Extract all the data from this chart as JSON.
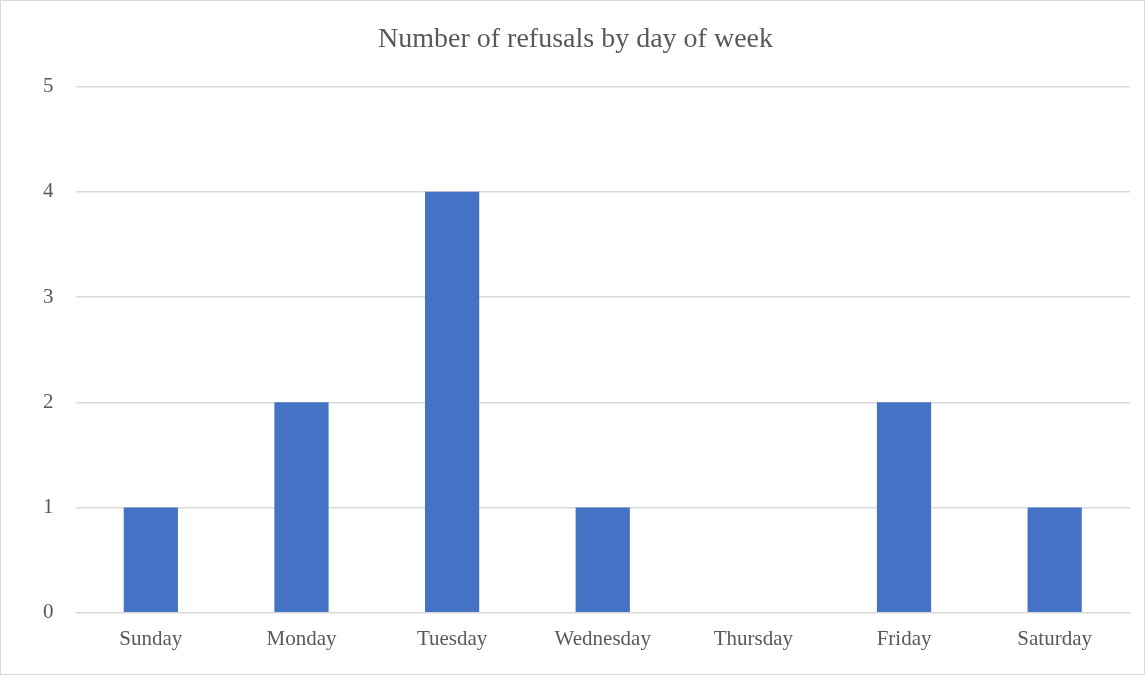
{
  "chart_data": {
    "type": "bar",
    "title": "Number of refusals by day of week",
    "categories": [
      "Sunday",
      "Monday",
      "Tuesday",
      "Wednesday",
      "Thursday",
      "Friday",
      "Saturday"
    ],
    "values": [
      1,
      2,
      4,
      1,
      0,
      2,
      1
    ],
    "color": "#4472c4",
    "ylim": [
      0,
      5
    ],
    "yticks": [
      0,
      1,
      2,
      3,
      4,
      5
    ],
    "grid": "y"
  }
}
